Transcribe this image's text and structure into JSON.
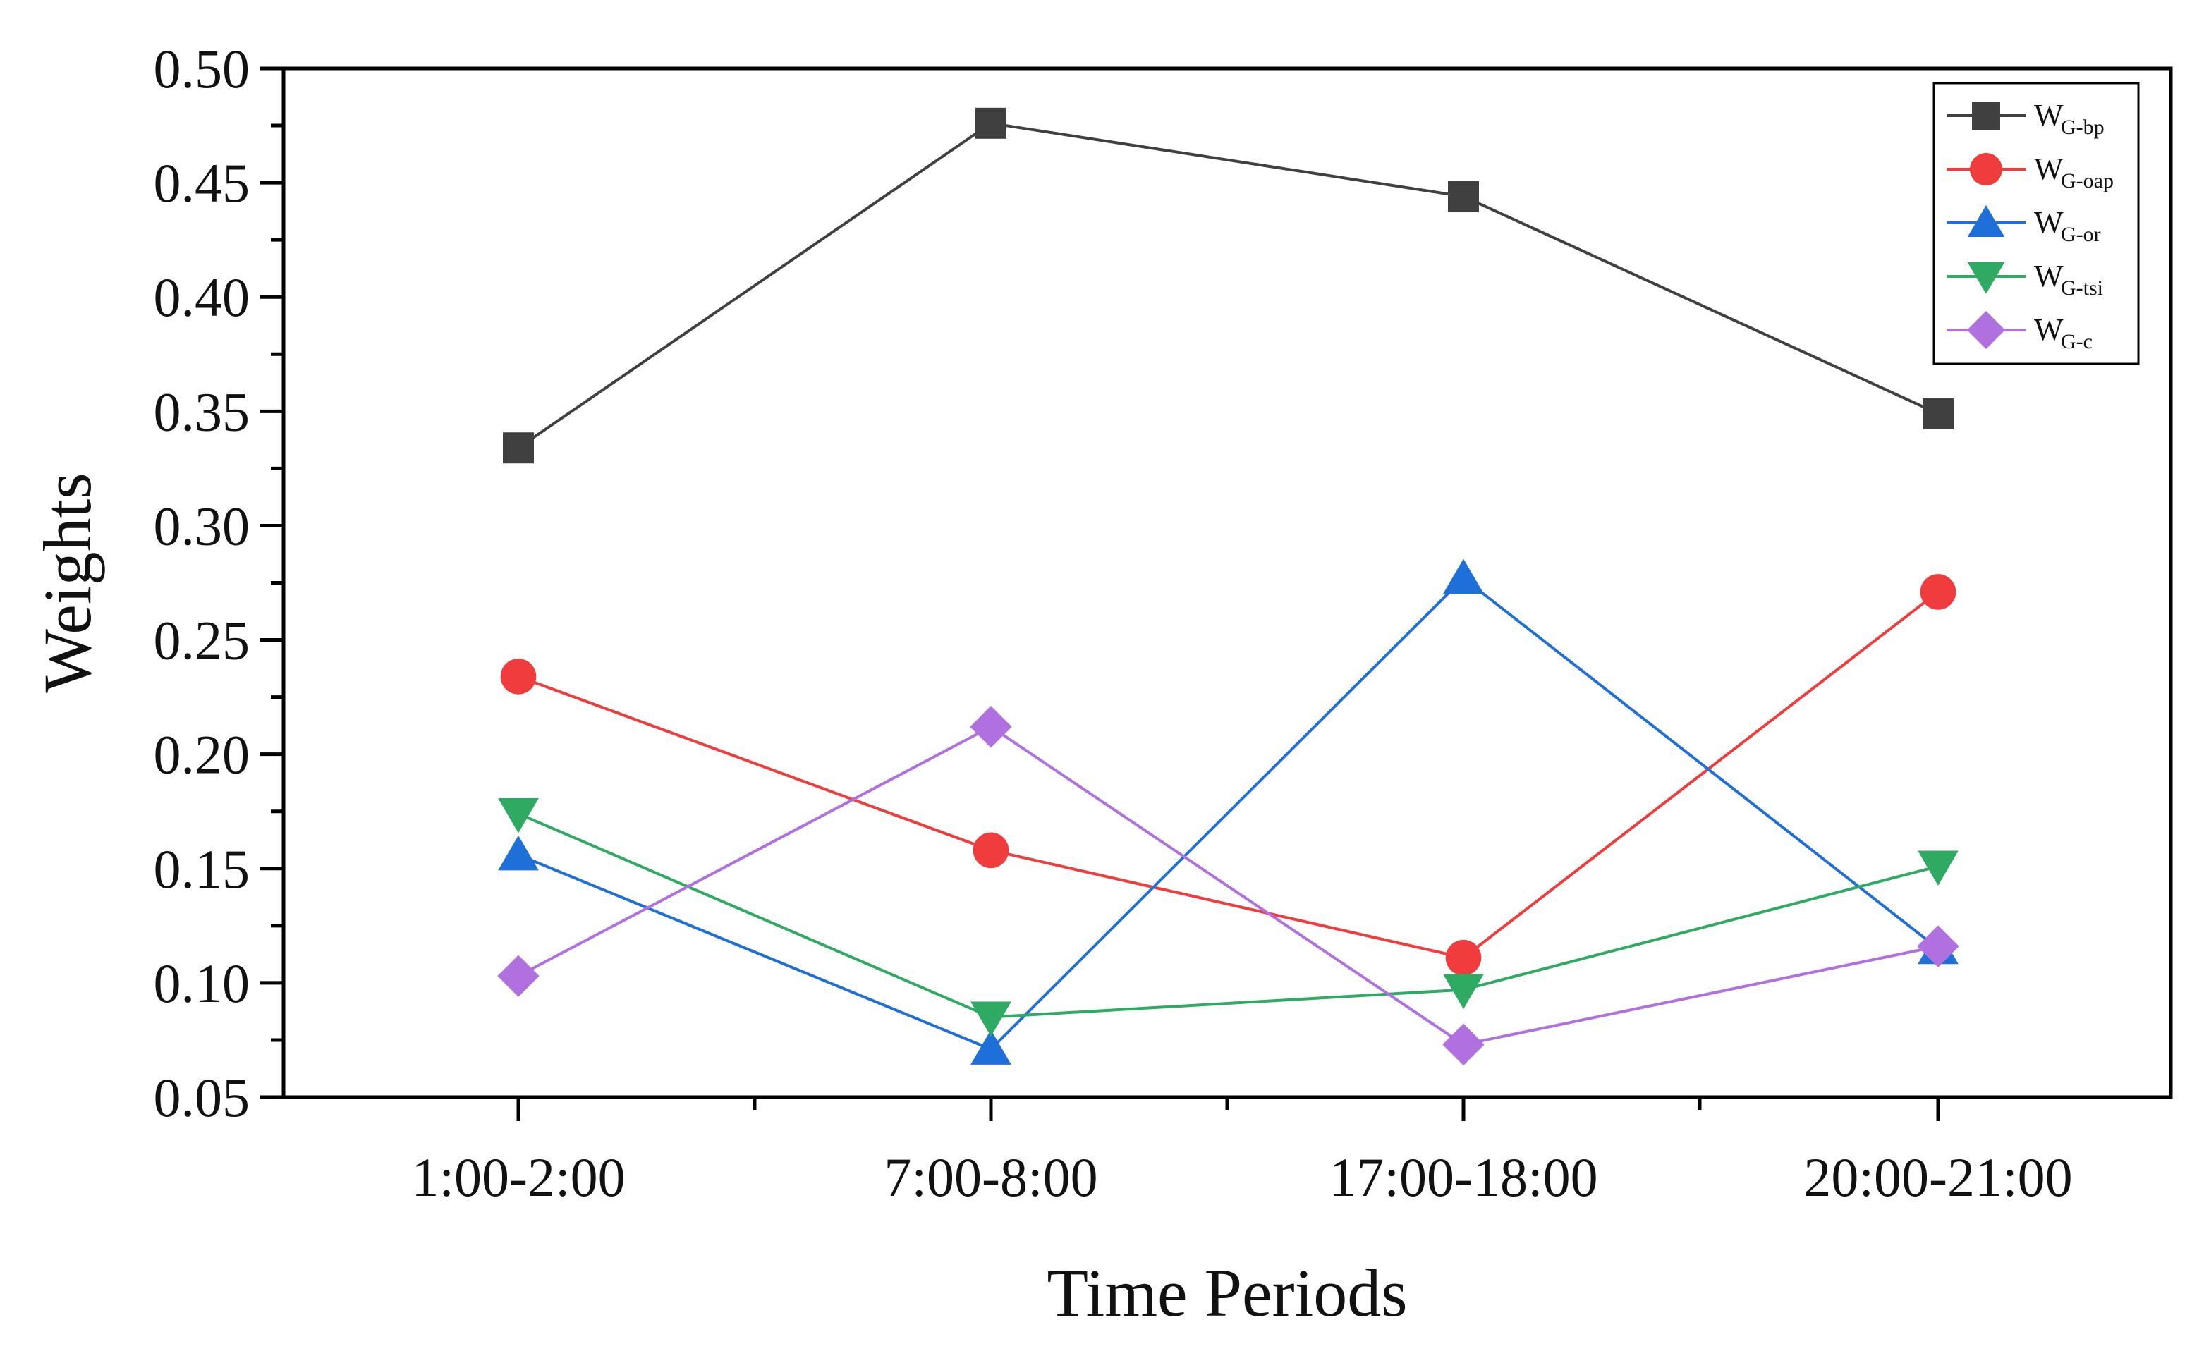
{
  "chart_data": {
    "type": "line",
    "title": "",
    "xlabel": "Time Periods",
    "ylabel": "Weights",
    "categories": [
      "1:00-2:00",
      "7:00-8:00",
      "17:00-18:00",
      "20:00-21:00"
    ],
    "ylim": [
      0.05,
      0.5
    ],
    "yticks": [
      "0.05",
      "0.10",
      "0.15",
      "0.20",
      "0.25",
      "0.30",
      "0.35",
      "0.40",
      "0.45",
      "0.50"
    ],
    "grid": false,
    "legend_position": "top-right",
    "series": [
      {
        "name": "W",
        "sub": "G-bp",
        "color": "#404040",
        "marker": "square",
        "values": [
          0.334,
          0.476,
          0.444,
          0.349
        ]
      },
      {
        "name": "W",
        "sub": "G-oap",
        "color": "#f03c3c",
        "marker": "circle",
        "values": [
          0.234,
          0.158,
          0.111,
          0.271
        ]
      },
      {
        "name": "W",
        "sub": "G-or",
        "color": "#1f6fd8",
        "marker": "triangle-up",
        "values": [
          0.156,
          0.071,
          0.277,
          0.115
        ]
      },
      {
        "name": "W",
        "sub": "G-tsi",
        "color": "#2eaa63",
        "marker": "triangle-down",
        "values": [
          0.174,
          0.085,
          0.097,
          0.151
        ]
      },
      {
        "name": "W",
        "sub": "G-c",
        "color": "#b070e0",
        "marker": "diamond",
        "values": [
          0.103,
          0.212,
          0.073,
          0.116
        ]
      }
    ]
  }
}
